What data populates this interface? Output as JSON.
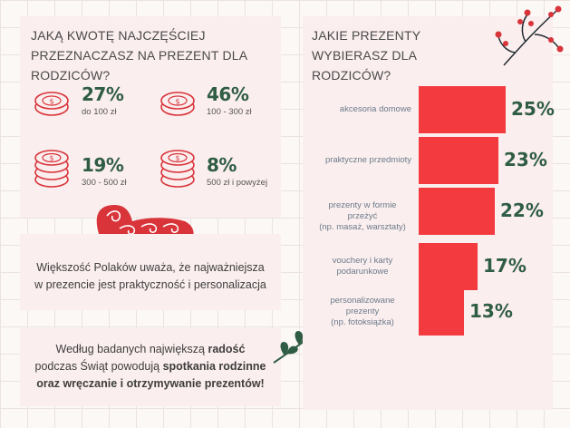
{
  "left_title": "JAKĄ KWOTĘ NAJCZĘŚCIEJ PRZEZNACZASZ NA PREZENT DLA RODZICÓW?",
  "amounts": [
    {
      "pct": "27%",
      "label": "do 100 zł"
    },
    {
      "pct": "46%",
      "label": "100 - 300 zł"
    },
    {
      "pct": "19%",
      "label": "300 - 500 zł"
    },
    {
      "pct": "8%",
      "label": "500 zł i powyżej"
    }
  ],
  "message1_line1": "Większość Polaków uważa, że najważniejsza",
  "message1_line2": "w prezencie jest praktyczność i personalizacja",
  "message2": {
    "l1a": "Według badanych największą ",
    "l1b": "radość",
    "l2a": "podczas Świąt powodują ",
    "l2b": "spotkania rodzinne",
    "l3": "oraz wręczanie i otrzymywanie prezentów!"
  },
  "right_title": "JAKIE PREZENTY WYBIERASZ DLA RODZICÓW?",
  "colors": {
    "bar": "#f23a3f",
    "pct": "#2f5d44",
    "panel": "#fbeeee"
  },
  "chart_data": {
    "type": "bar",
    "orientation": "horizontal",
    "title": "JAKIE PREZENTY WYBIERASZ DLA RODZICÓW?",
    "categories": [
      "akcesoria domowe",
      "praktyczne przedmioty",
      "prezenty w formie przeżyć (np. masaż, warsztaty)",
      "vouchery i karty podarunkowe",
      "personalizowane prezenty (np. fotoksiążka)"
    ],
    "category_lines": [
      [
        "akcesoria domowe"
      ],
      [
        "praktyczne przedmioty"
      ],
      [
        "prezenty w formie przeżyć",
        "(np. masaż, warsztaty)"
      ],
      [
        "vouchery i karty",
        "podarunkowe"
      ],
      [
        "personalizowane",
        "prezenty",
        "(np. fotoksiążka)"
      ]
    ],
    "values": [
      25,
      23,
      22,
      17,
      13
    ],
    "value_labels": [
      "25%",
      "23%",
      "22%",
      "17%",
      "13%"
    ],
    "xlim": [
      0,
      25
    ]
  }
}
